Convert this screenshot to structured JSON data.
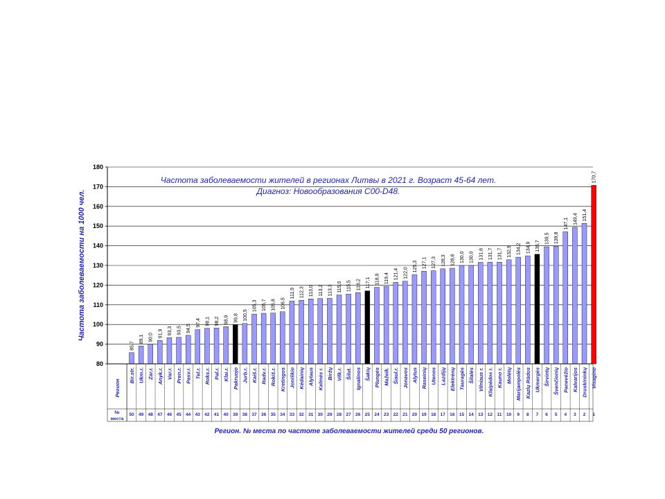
{
  "chart_data": {
    "type": "bar",
    "title": "Частота заболеваемости жителей в регионах Литвы в 2021 г. Возраст 45-64 лет.",
    "subtitle": "Диагноз: Новообразования C00-D48.",
    "ylabel": "Частота заболеваемости на 1000 чел.",
    "xlabel": "Регион. № места по частоте заболеваемости жителей среди 50 регионов.",
    "row_header_region": "Регион",
    "row_header_rank": "№ места",
    "ylim": [
      80,
      180
    ],
    "yticks": [
      "80",
      "90",
      "100",
      "110",
      "120",
      "130",
      "140",
      "150",
      "160",
      "170",
      "180"
    ],
    "grid": true,
    "colors": {
      "default": "#9999ff",
      "highlight": "#000000",
      "max": "#ff0000",
      "text": "#1f1fb4"
    },
    "categories": [
      "Bir.str.",
      "Ukm.r.",
      "Zar.r.",
      "Anyk.r.",
      "Var.r.",
      "Pren.r.",
      "Pasv.r.",
      "Tel.r.",
      "Roks.r.",
      "Pal.r.",
      "Klai.r.",
      "Pakruojo",
      "Jurb.r.",
      "Kaiš.r.",
      "Radv.r.",
      "Rokiš.r.",
      "Kretingos",
      "Joniškio",
      "Kėdainių",
      "Alytaus",
      "Kelmės r.",
      "Biržų",
      "Vilk.r.",
      "Šilut.",
      "Ignalinos",
      "Šakių",
      "Plungės",
      "Mažeik.",
      "Šiaul.r.",
      "Jonavos",
      "Alytus",
      "Raseinių",
      "Utenos",
      "Lazdijų",
      "Elektrėnų",
      "Tauragės",
      "Šilalės",
      "Vilniaus r.",
      "Klaipėdos r.",
      "Kauno r.",
      "Molėtų",
      "Marijampolės",
      "Kazlų Rūdos",
      "Ukmergės",
      "Širvintų",
      "Švenčionių",
      "Panevėžio",
      "Kalvarijos",
      "Druskininkų",
      "Visagino"
    ],
    "ranks": [
      "50",
      "49",
      "48",
      "47",
      "46",
      "45",
      "44",
      "43",
      "42",
      "41",
      "40",
      "39",
      "38",
      "37",
      "36",
      "35",
      "34",
      "33",
      "32",
      "31",
      "30",
      "29",
      "28",
      "27",
      "26",
      "25",
      "24",
      "23",
      "22",
      "21",
      "20",
      "19",
      "18",
      "17",
      "16",
      "15",
      "14",
      "13",
      "12",
      "11",
      "10",
      "9",
      "8",
      "7",
      "6",
      "5",
      "4",
      "3",
      "2",
      "1"
    ],
    "value_labels": [
      "85,7",
      "89,1",
      "90,0",
      "91,9",
      "93,3",
      "93,5",
      "94,5",
      "97,4",
      "98,1",
      "98,2",
      "98,9",
      "99,8",
      "100,5",
      "105,3",
      "105,7",
      "105,8",
      "106,5",
      "111,9",
      "112,3",
      "113,0",
      "113,2",
      "113,3",
      "115,0",
      "115,5",
      "116,2",
      "117,1",
      "118,9",
      "119,4",
      "121,4",
      "122,0",
      "125,3",
      "127,1",
      "127,3",
      "128,3",
      "128,6",
      "130,0",
      "130,0",
      "131,6",
      "131,7",
      "131,7",
      "132,9",
      "134,2",
      "134,9",
      "135,7",
      "139,5",
      "139,8",
      "147,1",
      "149,4",
      "151,4",
      "170,7"
    ],
    "values": [
      85.7,
      89.1,
      90.0,
      91.9,
      93.3,
      93.5,
      94.5,
      97.4,
      98.1,
      98.2,
      98.9,
      99.8,
      100.5,
      105.3,
      105.7,
      105.8,
      106.5,
      111.9,
      112.3,
      113.0,
      113.2,
      113.3,
      115.0,
      115.5,
      116.2,
      117.1,
      118.9,
      119.4,
      121.4,
      122.0,
      125.3,
      127.1,
      127.3,
      128.3,
      128.6,
      130.0,
      130.0,
      131.6,
      131.7,
      131.7,
      132.9,
      134.2,
      134.9,
      135.7,
      139.5,
      139.8,
      147.1,
      149.4,
      151.4,
      170.7
    ],
    "highlight_indices": [
      11,
      25,
      43
    ],
    "max_index": 49
  }
}
